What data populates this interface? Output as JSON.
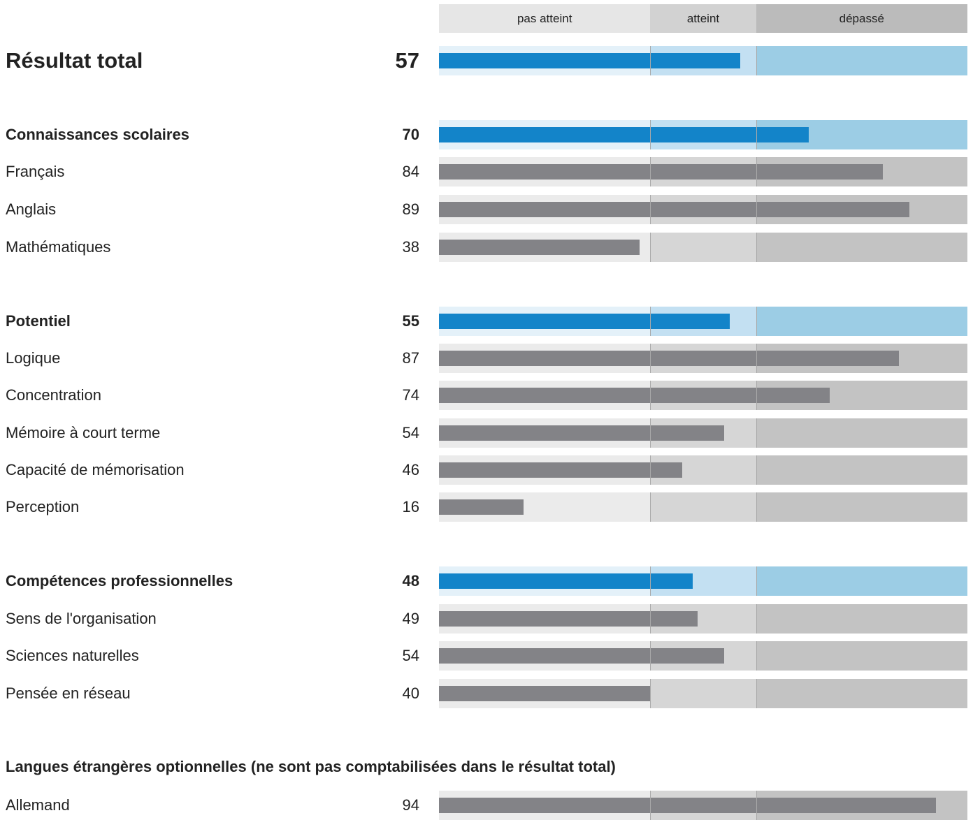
{
  "chart_data": {
    "type": "bar",
    "orientation": "horizontal",
    "xlim": [
      0,
      100
    ],
    "bands": [
      {
        "label": "pas atteint",
        "from": 0,
        "to": 40
      },
      {
        "label": "atteint",
        "from": 40,
        "to": 60
      },
      {
        "label": "dépassé",
        "from": 60,
        "to": 100
      }
    ],
    "rows": [
      {
        "label": "Résultat total",
        "value": 57,
        "kind": "total"
      },
      {
        "label": "Connaissances scolaires",
        "value": 70,
        "kind": "group"
      },
      {
        "label": "Français",
        "value": 84,
        "kind": "item"
      },
      {
        "label": "Anglais",
        "value": 89,
        "kind": "item"
      },
      {
        "label": "Mathématiques",
        "value": 38,
        "kind": "item"
      },
      {
        "label": "Potentiel",
        "value": 55,
        "kind": "group"
      },
      {
        "label": "Logique",
        "value": 87,
        "kind": "item"
      },
      {
        "label": "Concentration",
        "value": 74,
        "kind": "item"
      },
      {
        "label": "Mémoire à court terme",
        "value": 54,
        "kind": "item"
      },
      {
        "label": "Capacité de mémorisation",
        "value": 46,
        "kind": "item"
      },
      {
        "label": "Perception",
        "value": 16,
        "kind": "item"
      },
      {
        "label": "Compétences professionnelles",
        "value": 48,
        "kind": "group"
      },
      {
        "label": "Sens de l'organisation",
        "value": 49,
        "kind": "item"
      },
      {
        "label": "Sciences naturelles",
        "value": 54,
        "kind": "item"
      },
      {
        "label": "Pensée en réseau",
        "value": 40,
        "kind": "item"
      },
      {
        "label": "Allemand",
        "value": 94,
        "kind": "item"
      }
    ],
    "optional_section_title": "Langues étrangères optionnelles (ne sont pas comptabilisées dans le résultat total)"
  },
  "colors": {
    "header_band": [
      "#e6e6e6",
      "#d2d2d2",
      "#bbbbbb"
    ],
    "grey_band": [
      "#ebebeb",
      "#d6d6d6",
      "#c3c3c3"
    ],
    "blue_band": [
      "#e4f1f9",
      "#c3e0f2",
      "#9ccde5"
    ],
    "blue_bar": "#1384c9",
    "grey_bar": "#838387",
    "divider": "#a9a9a9"
  }
}
